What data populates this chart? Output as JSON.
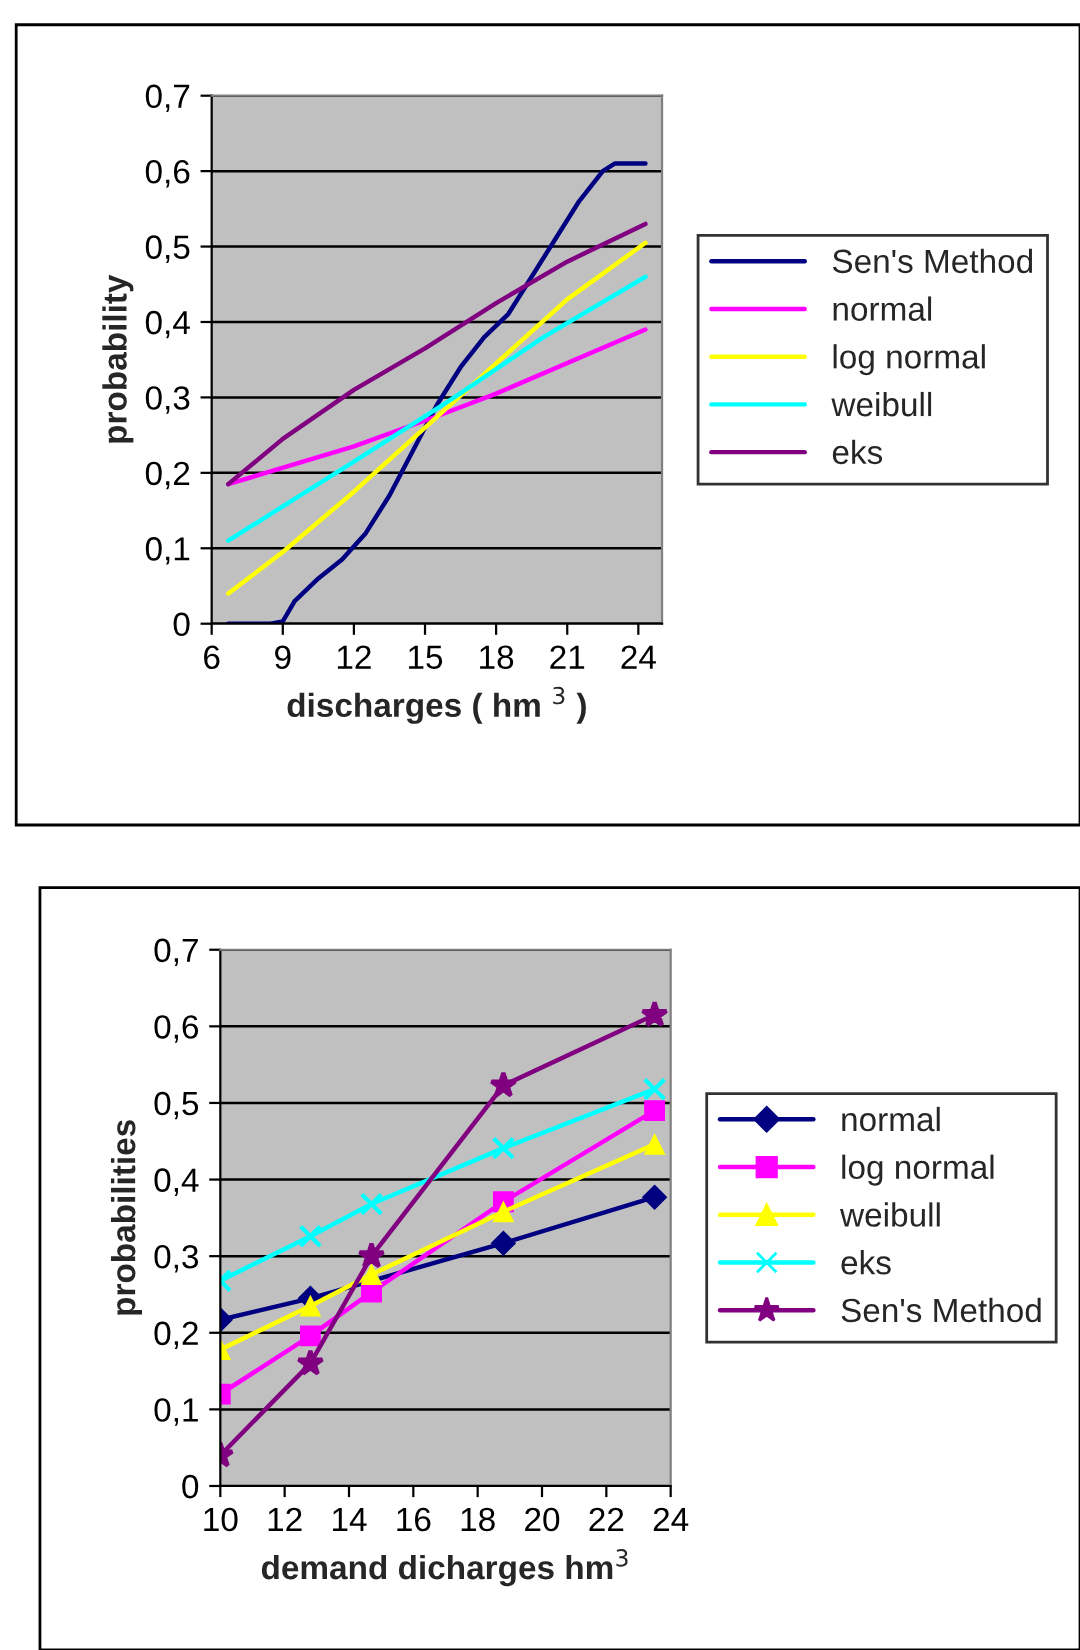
{
  "chart_data": [
    {
      "type": "line",
      "xlabel": "discharges ( hm $^{3}$ )",
      "ylabel": "probability",
      "xlim": [
        6,
        25
      ],
      "xticks": [
        6,
        9,
        12,
        15,
        18,
        21,
        24
      ],
      "ylim": [
        0,
        0.7
      ],
      "yticks": [
        {
          "value": 0,
          "label": "0"
        },
        {
          "value": 0.1,
          "label": "0,1"
        },
        {
          "value": 0.2,
          "label": "0,2"
        },
        {
          "value": 0.3,
          "label": "0,3"
        },
        {
          "value": 0.4,
          "label": "0,4"
        },
        {
          "value": 0.5,
          "label": "0,5"
        },
        {
          "value": 0.6,
          "label": "0,6"
        },
        {
          "value": 0.7,
          "label": "0,7"
        }
      ],
      "grid": "y",
      "legend": "right",
      "marker": "none",
      "series": [
        {
          "name": "Sen's Method",
          "color": "#000080",
          "x": [
            6.7,
            8.5,
            9.0,
            9.5,
            10.5,
            11.5,
            12.5,
            13.5,
            14.5,
            15.5,
            16.5,
            17.5,
            18.5,
            19.5,
            20.5,
            21.5,
            22.5,
            23.0,
            24.3
          ],
          "values": [
            0,
            0,
            0.003,
            0.03,
            0.06,
            0.085,
            0.12,
            0.17,
            0.23,
            0.29,
            0.34,
            0.38,
            0.41,
            0.46,
            0.51,
            0.56,
            0.6,
            0.61,
            0.61
          ]
        },
        {
          "name": "normal",
          "color": "#ff00ff",
          "x": [
            6.7,
            12,
            15.5,
            18,
            24.3
          ],
          "values": [
            0.185,
            0.235,
            0.275,
            0.305,
            0.39
          ]
        },
        {
          "name": "log normal",
          "color": "#ffff00",
          "x": [
            6.7,
            9,
            12,
            15,
            18,
            21,
            24.3
          ],
          "values": [
            0.04,
            0.095,
            0.175,
            0.26,
            0.345,
            0.43,
            0.505
          ]
        },
        {
          "name": "weibull",
          "color": "#00ffff",
          "x": [
            6.7,
            12,
            16,
            20,
            24.3
          ],
          "values": [
            0.11,
            0.215,
            0.295,
            0.38,
            0.46
          ]
        },
        {
          "name": "eks",
          "color": "#800080",
          "x": [
            6.7,
            9,
            12,
            15,
            18,
            21,
            24.3
          ],
          "values": [
            0.185,
            0.245,
            0.31,
            0.365,
            0.425,
            0.48,
            0.53
          ]
        }
      ]
    },
    {
      "type": "line",
      "xlabel": "demand dicharges hm$^{3}$",
      "ylabel": "probabilities",
      "x": [
        10.0,
        12.8,
        14.7,
        18.8,
        23.5
      ],
      "xlim": [
        10,
        24
      ],
      "xticks": [
        10,
        12,
        14,
        16,
        18,
        20,
        22,
        24
      ],
      "ylim": [
        0,
        0.7
      ],
      "yticks": [
        {
          "value": 0,
          "label": "0"
        },
        {
          "value": 0.1,
          "label": "0,1"
        },
        {
          "value": 0.2,
          "label": "0,2"
        },
        {
          "value": 0.3,
          "label": "0,3"
        },
        {
          "value": 0.4,
          "label": "0,4"
        },
        {
          "value": 0.5,
          "label": "0,5"
        },
        {
          "value": 0.6,
          "label": "0,6"
        },
        {
          "value": 0.7,
          "label": "0,7"
        }
      ],
      "grid": "y",
      "legend": "right",
      "series": [
        {
          "name": "normal",
          "color": "#000080",
          "marker": "diamond",
          "values": [
            0.217,
            0.245,
            null,
            0.317,
            0.377
          ]
        },
        {
          "name": "log normal",
          "color": "#ff00ff",
          "marker": "square",
          "values": [
            0.12,
            0.196,
            0.253,
            0.371,
            0.49
          ]
        },
        {
          "name": "weibull",
          "color": "#ffff00",
          "marker": "triangle",
          "values": [
            0.178,
            0.235,
            0.276,
            0.358,
            0.446
          ]
        },
        {
          "name": "eks",
          "color": "#00ffff",
          "marker": "cross",
          "values": [
            0.268,
            0.326,
            0.368,
            0.441,
            0.518
          ]
        },
        {
          "name": "Sen's Method",
          "color": "#800080",
          "marker": "star",
          "values": [
            0.04,
            0.16,
            0.3,
            0.523,
            0.615
          ]
        }
      ]
    }
  ]
}
